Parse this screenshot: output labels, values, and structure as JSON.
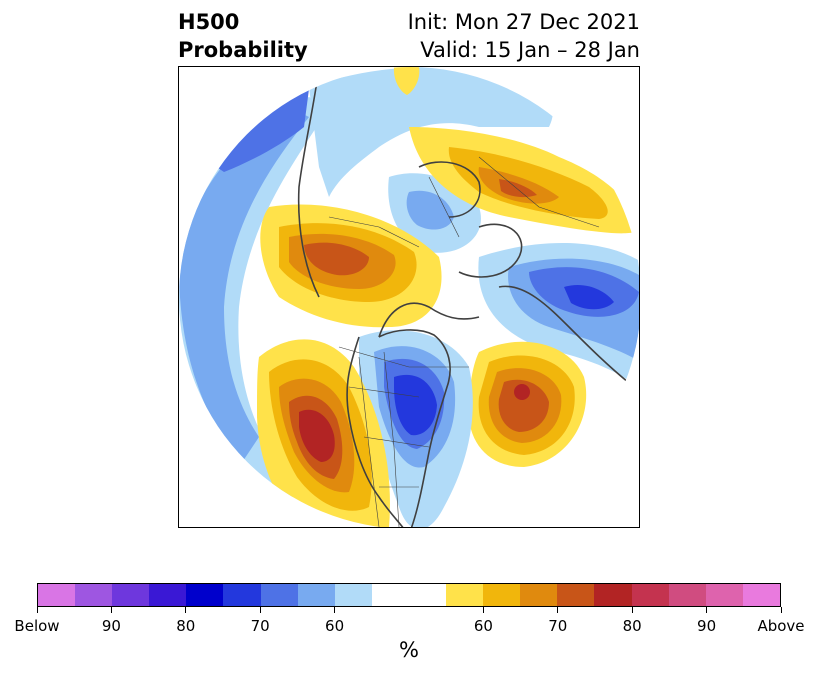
{
  "title": {
    "left_line1": "H500",
    "left_line2": "Probability",
    "right_line1": "Init: Mon 27 Dec 2021",
    "right_line2": "Valid: 15 Jan – 28 Jan"
  },
  "map": {
    "projection": "polar stereographic (North Pole)",
    "anomalies": [
      {
        "region": "western North America",
        "sign": "above",
        "peak": "80"
      },
      {
        "region": "central/eastern North America",
        "sign": "below",
        "peak": "80"
      },
      {
        "region": "North Atlantic",
        "sign": "above",
        "peak": "80"
      },
      {
        "region": "northeast Pacific / Gulf of Alaska",
        "sign": "below",
        "peak": "60"
      },
      {
        "region": "Siberia",
        "sign": "above",
        "peak": "70"
      },
      {
        "region": "North Pacific / east Asia",
        "sign": "below",
        "peak": "80"
      },
      {
        "region": "Scandinavia / Europe",
        "sign": "below",
        "peak": "60"
      }
    ]
  },
  "colorbar": {
    "colors": [
      "#d975e5",
      "#9e56e1",
      "#6e37dd",
      "#3a18d5",
      "#0000cc",
      "#2338dd",
      "#4e72e6",
      "#78aaf0",
      "#b1dbf8",
      "#ffffff",
      "#ffffff",
      "#ffe24a",
      "#f1b60c",
      "#e08a0e",
      "#c85518",
      "#b22424",
      "#c4334f",
      "#d04c80",
      "#de63ad",
      "#e97ade"
    ],
    "labels": [
      "Below",
      "90",
      "80",
      "70",
      "60",
      "60",
      "70",
      "80",
      "90",
      "Above"
    ],
    "unit": "%"
  }
}
